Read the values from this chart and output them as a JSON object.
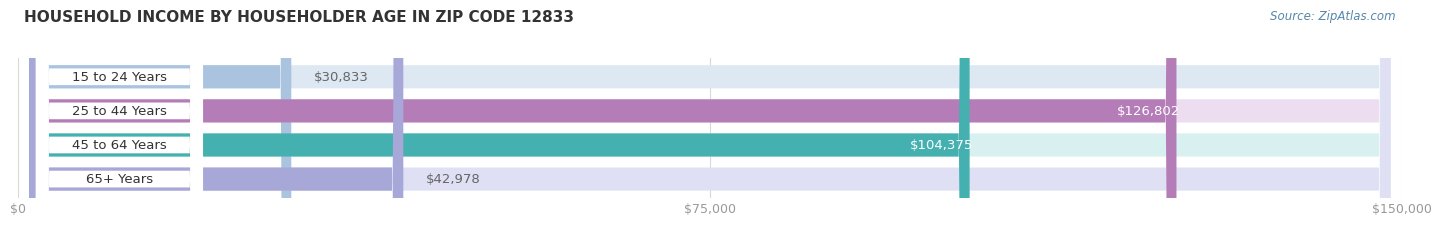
{
  "title": "HOUSEHOLD INCOME BY HOUSEHOLDER AGE IN ZIP CODE 12833",
  "source": "Source: ZipAtlas.com",
  "categories": [
    "15 to 24 Years",
    "25 to 44 Years",
    "45 to 64 Years",
    "65+ Years"
  ],
  "values": [
    30833,
    126802,
    104375,
    42978
  ],
  "bar_colors": [
    "#aac4e0",
    "#b57db8",
    "#45b0b0",
    "#a8a8d8"
  ],
  "bar_bg_colors": [
    "#dde8f3",
    "#ecddf0",
    "#d8f0f0",
    "#e0e0f5"
  ],
  "label_colors": [
    "#555555",
    "#ffffff",
    "#ffffff",
    "#555555"
  ],
  "xlim": [
    0,
    150000
  ],
  "xticks": [
    0,
    75000,
    150000
  ],
  "xtick_labels": [
    "$0",
    "$75,000",
    "$150,000"
  ],
  "background_color": "#ffffff",
  "title_fontsize": 11,
  "label_fontsize": 9.5,
  "tick_fontsize": 9,
  "source_fontsize": 8.5
}
